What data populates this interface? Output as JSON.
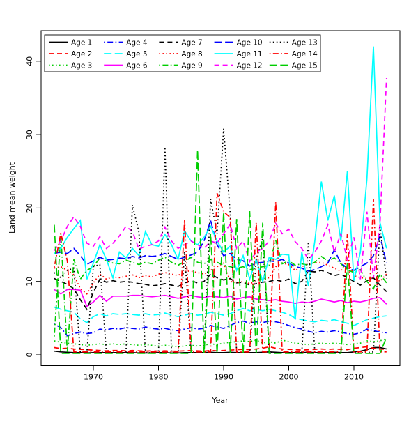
{
  "chart_data": {
    "type": "line",
    "title": "",
    "xlabel": "Year",
    "ylabel": "Land mean weight",
    "x_tick_labels": [
      "1970",
      "1980",
      "1990",
      "2000",
      "2010"
    ],
    "x_ticks": [
      1970,
      1980,
      1990,
      2000,
      2010
    ],
    "y_tick_labels": [
      "0",
      "10",
      "20",
      "30",
      "40"
    ],
    "y_ticks": [
      0,
      10,
      20,
      30,
      40
    ],
    "xlim": [
      1961.9,
      2017.1
    ],
    "ylim": [
      -1.6,
      44.2
    ],
    "grid": false,
    "legend_position": "top-left-inside",
    "legend_columns": 5,
    "palette": {
      "black": "#000000",
      "red": "#FF0000",
      "green": "#00CD00",
      "blue": "#0000FF",
      "cyan": "#00FFFF",
      "magenta": "#FF00FF"
    },
    "x": [
      1964,
      1965,
      1966,
      1967,
      1968,
      1969,
      1970,
      1971,
      1972,
      1973,
      1974,
      1975,
      1976,
      1977,
      1978,
      1979,
      1980,
      1981,
      1982,
      1983,
      1984,
      1985,
      1986,
      1987,
      1988,
      1989,
      1990,
      1991,
      1992,
      1993,
      1994,
      1995,
      1996,
      1997,
      1998,
      1999,
      2000,
      2001,
      2002,
      2003,
      2004,
      2005,
      2006,
      2007,
      2008,
      2009,
      2010,
      2011,
      2012,
      2013,
      2014,
      2015
    ],
    "series": [
      {
        "name": "Age 1",
        "color": "#000000",
        "linetype": "solid",
        "values": [
          0.5,
          0.4,
          0.35,
          0.3,
          0.3,
          0.25,
          0.3,
          0.3,
          0.3,
          0.3,
          0.3,
          0.3,
          0.3,
          0.25,
          0.25,
          0.25,
          0.3,
          0.3,
          0.25,
          0.25,
          0.3,
          0.3,
          0.3,
          0.3,
          0.35,
          0.3,
          0.3,
          0.35,
          0.3,
          0.3,
          0.3,
          0.3,
          0.35,
          0.4,
          0.35,
          0.3,
          0.3,
          0.3,
          0.3,
          0.35,
          0.3,
          0.3,
          0.3,
          0.35,
          0.3,
          0.3,
          0.4,
          0.5,
          0.7,
          1.0,
          1.0,
          0.8
        ]
      },
      {
        "name": "Age 2",
        "color": "#FF0000",
        "linetype": "dashed",
        "values": [
          1.0,
          0.85,
          0.9,
          0.8,
          0.75,
          0.7,
          0.65,
          0.6,
          0.55,
          0.6,
          0.6,
          0.55,
          0.6,
          0.55,
          0.5,
          0.55,
          0.5,
          0.55,
          0.5,
          0.5,
          0.55,
          0.6,
          0.55,
          0.5,
          0.6,
          0.55,
          0.6,
          0.65,
          0.7,
          0.75,
          0.7,
          0.8,
          0.9,
          1.1,
          0.9,
          0.8,
          0.75,
          0.7,
          0.65,
          0.7,
          0.75,
          0.8,
          0.75,
          0.8,
          0.75,
          0.7,
          0.9,
          1.0,
          1.1,
          0.9,
          0.8,
          0.75
        ]
      },
      {
        "name": "Age 3",
        "color": "#00CD00",
        "linetype": "dotted",
        "values": [
          1.9,
          1.7,
          1.6,
          1.5,
          1.4,
          1.3,
          1.4,
          1.5,
          1.4,
          1.5,
          1.4,
          1.5,
          1.4,
          1.3,
          1.4,
          1.3,
          1.2,
          1.3,
          1.2,
          1.1,
          1.2,
          1.3,
          1.2,
          1.3,
          1.5,
          1.4,
          1.6,
          1.7,
          1.8,
          1.9,
          1.8,
          2.0,
          1.6,
          1.8,
          1.6,
          2.0,
          1.8,
          1.6,
          1.5,
          1.4,
          1.5,
          1.6,
          1.5,
          1.6,
          1.5,
          1.4,
          1.5,
          1.6,
          1.9,
          1.8,
          1.9,
          2.2
        ]
      },
      {
        "name": "Age 4",
        "color": "#0000FF",
        "linetype": "dotdash",
        "values": [
          4.2,
          3.7,
          2.6,
          2.9,
          3.1,
          2.9,
          3.0,
          3.5,
          3.4,
          3.6,
          3.5,
          3.7,
          3.6,
          3.5,
          3.8,
          3.6,
          3.5,
          3.6,
          3.4,
          3.3,
          3.5,
          3.7,
          3.5,
          3.6,
          4.0,
          3.8,
          3.6,
          4.0,
          4.4,
          4.6,
          4.3,
          4.5,
          4.4,
          4.6,
          4.5,
          4.3,
          4.0,
          3.7,
          3.5,
          3.2,
          3.0,
          3.2,
          3.1,
          3.3,
          3.1,
          2.9,
          2.8,
          3.0,
          3.5,
          3.3,
          3.1,
          3.0
        ]
      },
      {
        "name": "Age 5",
        "color": "#00FFFF",
        "linetype": "longdash",
        "values": [
          6.5,
          6.2,
          6.0,
          5.8,
          4.9,
          4.4,
          5.2,
          5.6,
          5.3,
          5.6,
          5.5,
          5.6,
          5.5,
          5.4,
          5.6,
          5.4,
          5.5,
          5.7,
          5.4,
          5.2,
          5.4,
          5.6,
          5.4,
          5.5,
          5.8,
          5.6,
          5.4,
          5.6,
          6.0,
          6.3,
          6.0,
          6.2,
          6.0,
          6.2,
          6.0,
          5.8,
          5.5,
          5.0,
          4.8,
          4.6,
          4.5,
          4.7,
          4.6,
          4.8,
          4.5,
          4.3,
          4.0,
          4.4,
          4.8,
          5.0,
          5.2,
          5.3
        ]
      },
      {
        "name": "Age 6",
        "color": "#FF00FF",
        "linetype": "solid",
        "values": [
          8.9,
          8.3,
          8.9,
          8.9,
          8.8,
          6.6,
          7.2,
          8.1,
          7.3,
          8.0,
          8.0,
          8.0,
          8.1,
          8.1,
          8.0,
          7.9,
          8.0,
          8.1,
          7.9,
          7.7,
          7.9,
          8.1,
          7.9,
          7.8,
          8.0,
          7.9,
          7.8,
          8.0,
          7.6,
          7.8,
          7.9,
          7.6,
          7.5,
          7.4,
          7.5,
          7.3,
          7.2,
          7.0,
          7.2,
          7.1,
          7.3,
          7.6,
          7.4,
          7.2,
          7.4,
          7.1,
          7.3,
          7.2,
          7.4,
          7.7,
          7.8,
          6.9
        ]
      },
      {
        "name": "Age 7",
        "color": "#000000",
        "linetype": "dashed",
        "values": [
          10.4,
          10.0,
          9.6,
          9.0,
          7.5,
          6.2,
          8.5,
          10.3,
          9.9,
          10.1,
          9.9,
          10.0,
          9.9,
          9.7,
          9.6,
          9.4,
          9.5,
          9.7,
          9.5,
          9.3,
          9.8,
          10.1,
          9.8,
          10.0,
          11.0,
          10.5,
          10.2,
          10.4,
          9.8,
          9.9,
          9.5,
          9.7,
          9.9,
          10.0,
          10.2,
          10.0,
          10.3,
          9.7,
          10.0,
          11.4,
          11.3,
          11.5,
          11.2,
          10.8,
          11.0,
          10.5,
          10.0,
          9.5,
          10.1,
          10.5,
          9.5,
          8.6
        ]
      },
      {
        "name": "Age 8",
        "color": "#FF0000",
        "linetype": "dotted",
        "values": [
          11.8,
          12.0,
          11.5,
          10.9,
          9.0,
          8.3,
          9.8,
          11.0,
          10.3,
          10.6,
          10.5,
          10.7,
          10.9,
          10.5,
          10.8,
          10.6,
          11.0,
          11.2,
          11.0,
          10.8,
          11.4,
          11.4,
          11.2,
          11.0,
          11.5,
          12.0,
          12.5,
          10.0,
          9.8,
          10.0,
          9.7,
          10.0,
          10.3,
          10.5,
          12.0,
          12.5,
          12.3,
          11.5,
          12.0,
          12.4,
          12.5,
          12.6,
          12.2,
          11.8,
          11.4,
          13.0,
          10.8,
          10.5,
          10.4,
          10.5,
          10.0,
          11.0
        ]
      },
      {
        "name": "Age 9",
        "color": "#00CD00",
        "linetype": "dotdash",
        "values": [
          2.5,
          16.5,
          0.4,
          13.0,
          10.3,
          11.5,
          12.0,
          13.2,
          12.8,
          12.5,
          12.4,
          12.9,
          12.6,
          12.3,
          12.6,
          12.4,
          12.9,
          13.3,
          12.6,
          12.2,
          12.7,
          13.3,
          12.6,
          12.4,
          13.0,
          12.6,
          12.2,
          12.0,
          11.8,
          12.0,
          11.6,
          11.8,
          12.0,
          12.2,
          15.6,
          12.4,
          12.8,
          12.2,
          12.4,
          12.2,
          12.6,
          13.4,
          12.8,
          13.2,
          12.4,
          11.6,
          11.2,
          11.6,
          10.0,
          9.0,
          11.0,
          9.8
        ]
      },
      {
        "name": "Age 10",
        "color": "#0000FF",
        "linetype": "longdash",
        "values": [
          13.8,
          14.0,
          13.8,
          14.5,
          13.5,
          12.3,
          12.8,
          13.3,
          12.9,
          13.0,
          13.2,
          13.1,
          13.4,
          13.2,
          13.5,
          13.4,
          13.5,
          13.8,
          13.4,
          13.0,
          13.3,
          13.6,
          14.0,
          15.5,
          18.3,
          15.0,
          13.5,
          13.8,
          13.0,
          12.8,
          12.1,
          12.5,
          12.6,
          12.8,
          12.7,
          13.0,
          12.5,
          12.0,
          11.8,
          11.4,
          11.6,
          12.0,
          12.5,
          14.3,
          12.5,
          11.8,
          11.5,
          12.0,
          12.5,
          13.5,
          16.2,
          12.5
        ]
      },
      {
        "name": "Age 11",
        "color": "#00FFFF",
        "linetype": "solid",
        "values": [
          13.8,
          14.5,
          16.0,
          17.2,
          18.3,
          10.3,
          12.5,
          15.0,
          13.0,
          10.5,
          14.0,
          13.2,
          14.5,
          13.5,
          16.8,
          15.0,
          14.8,
          16.4,
          15.0,
          13.0,
          16.9,
          15.5,
          15.0,
          16.0,
          17.5,
          15.5,
          14.0,
          14.8,
          11.5,
          13.5,
          10.3,
          13.0,
          10.0,
          13.3,
          13.0,
          13.7,
          13.6,
          4.8,
          14.0,
          9.4,
          15.5,
          23.6,
          18.3,
          21.7,
          15.5,
          25.0,
          10.1,
          14.0,
          24.0,
          42.0,
          18.0,
          14.5
        ]
      },
      {
        "name": "Age 12",
        "color": "#FF00FF",
        "linetype": "dashed",
        "values": [
          14.2,
          15.5,
          17.5,
          18.8,
          17.5,
          15.2,
          14.8,
          16.1,
          14.5,
          15.2,
          16.2,
          17.5,
          16.8,
          14.4,
          14.8,
          15.0,
          15.5,
          17.4,
          15.5,
          14.5,
          15.0,
          15.5,
          15.0,
          14.5,
          15.5,
          15.2,
          16.5,
          17.8,
          14.5,
          15.5,
          12.7,
          14.0,
          14.5,
          15.5,
          17.9,
          16.5,
          17.1,
          15.4,
          14.5,
          13.0,
          14.0,
          15.5,
          17.7,
          14.0,
          16.5,
          13.0,
          16.0,
          10.3,
          19.5,
          10.5,
          17.8,
          37.7
        ]
      },
      {
        "name": "Age 13",
        "color": "#000000",
        "linetype": "dotted",
        "values": [
          11.2,
          10.5,
          11.5,
          11.8,
          0.3,
          0.3,
          12.0,
          12.3,
          0.3,
          0.3,
          0.3,
          0.3,
          20.4,
          16.7,
          0.3,
          0.3,
          0.3,
          28.3,
          0.3,
          0.3,
          14.0,
          0.3,
          0.3,
          0.3,
          21.2,
          16.5,
          30.8,
          19.3,
          0.3,
          0.3,
          0.3,
          13.0,
          15.9,
          0.3,
          0.3,
          0.3,
          0.3,
          0.3,
          0.3,
          15.4,
          0.3,
          0.3,
          0.3,
          0.3,
          0.3,
          0.3,
          0.3,
          0.3,
          0.3,
          0.4,
          17.4,
          10.4
        ]
      },
      {
        "name": "Age 14",
        "color": "#FF0000",
        "linetype": "dotdash",
        "values": [
          11.9,
          16.6,
          12.8,
          0.4,
          0.4,
          0.4,
          0.4,
          0.4,
          0.4,
          0.4,
          0.4,
          0.4,
          0.4,
          0.4,
          0.4,
          0.4,
          0.4,
          0.4,
          0.4,
          0.4,
          18.4,
          0.4,
          0.4,
          0.4,
          0.4,
          22.0,
          19.5,
          18.7,
          0.4,
          0.4,
          0.4,
          18.0,
          0.4,
          0.4,
          20.8,
          0.4,
          0.4,
          0.4,
          0.4,
          0.4,
          0.4,
          0.4,
          0.4,
          0.4,
          0.4,
          16.5,
          0.4,
          0.4,
          0.4,
          21.2,
          0.4,
          0.4
        ]
      },
      {
        "name": "Age 15",
        "color": "#00CD00",
        "linetype": "longdash",
        "values": [
          17.7,
          0.2,
          0.2,
          0.2,
          0.2,
          0.2,
          0.2,
          0.2,
          0.2,
          0.2,
          0.2,
          0.2,
          0.2,
          0.2,
          0.2,
          0.2,
          0.2,
          0.2,
          0.2,
          0.2,
          0.2,
          0.2,
          27.9,
          0.2,
          16.5,
          0.2,
          19.5,
          0.2,
          18.5,
          0.2,
          19.6,
          0.2,
          18.0,
          0.2,
          0.2,
          0.2,
          0.2,
          0.2,
          0.2,
          0.2,
          0.2,
          0.2,
          0.2,
          0.2,
          0.2,
          12.5,
          0.2,
          0.2,
          0.2,
          0.2,
          0.2,
          2.4
        ]
      }
    ]
  }
}
